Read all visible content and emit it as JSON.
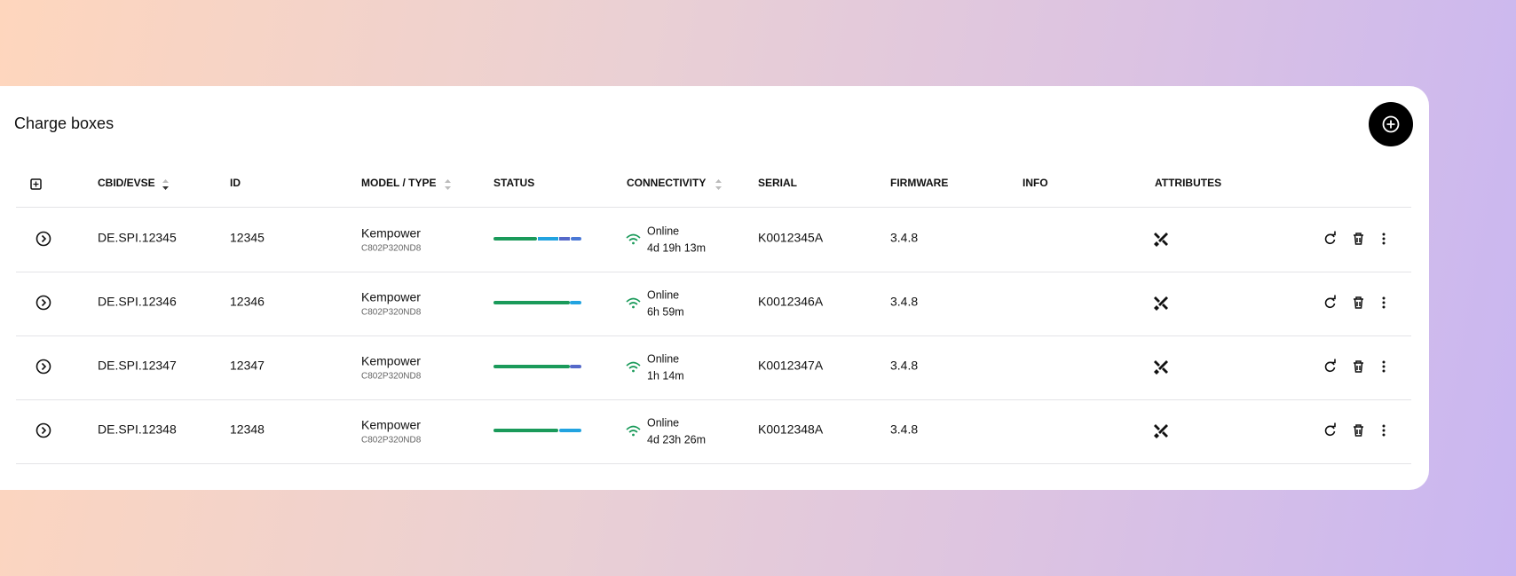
{
  "header": {
    "title": "Charge boxes"
  },
  "table": {
    "columns": [
      "CBID/EVSE",
      "ID",
      "MODEL / TYPE",
      "STATUS",
      "CONNECTIVITY",
      "SERIAL",
      "FIRMWARE",
      "INFO",
      "ATTRIBUTES"
    ],
    "rows": [
      {
        "cbid": "DE.SPI.12345",
        "id": "12345",
        "model": "Kempower",
        "type": "C802P320ND8",
        "connectivity": "Online",
        "uptime": "4d 19h 13m",
        "serial": "K0012345A",
        "firmware": "3.4.8"
      },
      {
        "cbid": "DE.SPI.12346",
        "id": "12346",
        "model": "Kempower",
        "type": "C802P320ND8",
        "connectivity": "Online",
        "uptime": "6h 59m",
        "serial": "K0012346A",
        "firmware": "3.4.8"
      },
      {
        "cbid": "DE.SPI.12347",
        "id": "12347",
        "model": "Kempower",
        "type": "C802P320ND8",
        "connectivity": "Online",
        "uptime": "1h 14m",
        "serial": "K0012347A",
        "firmware": "3.4.8"
      },
      {
        "cbid": "DE.SPI.12348",
        "id": "12348",
        "model": "Kempower",
        "type": "C802P320ND8",
        "connectivity": "Online",
        "uptime": "4d 23h 26m",
        "serial": "K0012348A",
        "firmware": "3.4.8"
      }
    ]
  }
}
